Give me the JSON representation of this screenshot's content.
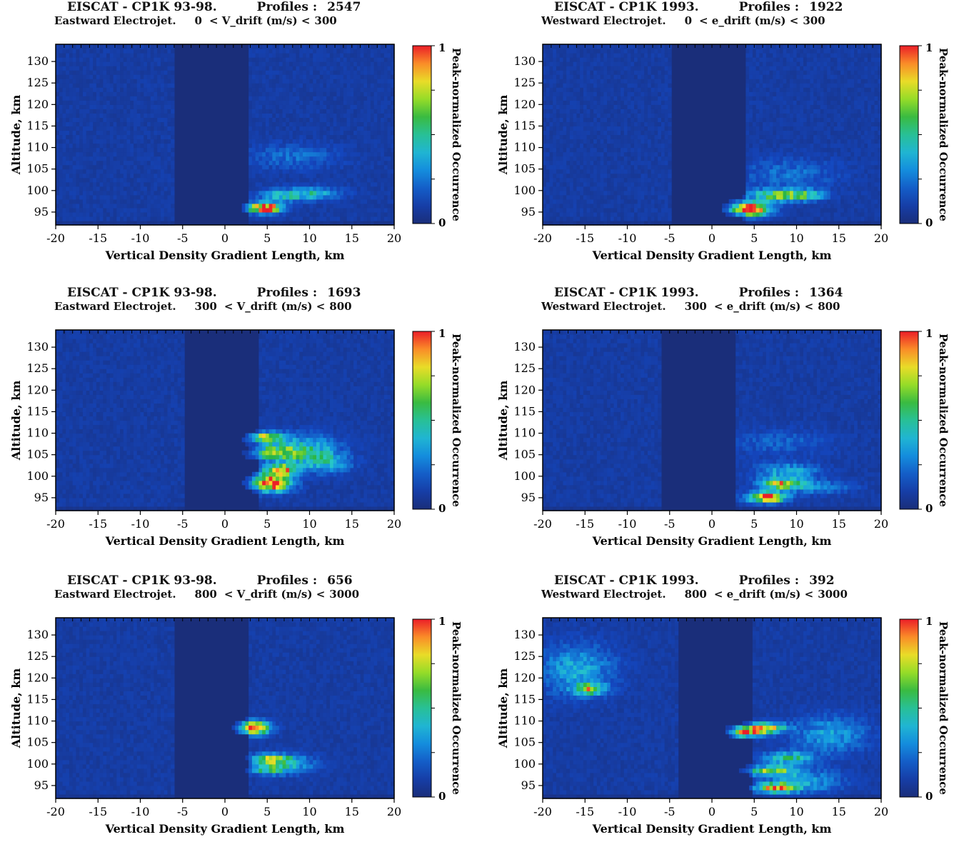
{
  "colors": {
    "background": "#1a2e7a",
    "axis": "#000000"
  },
  "colorbar": {
    "label": "Peak-normalized Occurrence",
    "max_label": "1",
    "min_label": "0"
  },
  "chart_data": [
    {
      "type": "heatmap",
      "header_left": "EISCAT - CP1K 93-98.",
      "header_right_label": "Profiles :",
      "profiles": "2547",
      "subtitle_left": "Eastward Electrojet.",
      "drift_low": "0",
      "drift_label": "< V_drift (m/s) <",
      "drift_high": "300",
      "xlabel": "Vertical Density Gradient Length, km",
      "ylabel": "Altitude, km",
      "xlim": [
        -20,
        20
      ],
      "ylim": [
        92,
        134
      ],
      "xticks": [
        -20,
        -15,
        -10,
        -5,
        0,
        5,
        10,
        15,
        20
      ],
      "yticks": [
        95,
        100,
        105,
        110,
        115,
        120,
        125,
        130
      ],
      "empty_band_x": [
        -6,
        3
      ],
      "hotspots": [
        {
          "x": 4.8,
          "y": 96,
          "sx": 1.4,
          "sy": 0.8,
          "v": 1.0
        },
        {
          "x": 7,
          "y": 99,
          "sx": 2.0,
          "sy": 1.0,
          "v": 0.35
        },
        {
          "x": 11,
          "y": 99.5,
          "sx": 2.0,
          "sy": 1.0,
          "v": 0.28
        },
        {
          "x": 8,
          "y": 108,
          "sx": 4.0,
          "sy": 2.0,
          "v": 0.14
        }
      ]
    },
    {
      "type": "heatmap",
      "header_left": "EISCAT - CP1K 1993.",
      "header_right_label": "Profiles :",
      "profiles": "1922",
      "subtitle_left": "Westward Electrojet.",
      "drift_low": "0",
      "drift_label": "< e_drift (m/s) <",
      "drift_high": "300",
      "xlabel": "Vertical Density Gradient Length, km",
      "ylabel": "Altitude, km",
      "xlim": [
        -20,
        20
      ],
      "ylim": [
        92,
        134
      ],
      "xticks": [
        -20,
        -15,
        -10,
        -5,
        0,
        5,
        10,
        15,
        20
      ],
      "yticks": [
        95,
        100,
        105,
        110,
        115,
        120,
        125,
        130
      ],
      "empty_band_x": [
        -5,
        4
      ],
      "hotspots": [
        {
          "x": 4.5,
          "y": 95.8,
          "sx": 1.6,
          "sy": 1.1,
          "v": 1.0
        },
        {
          "x": 7.5,
          "y": 99,
          "sx": 2.0,
          "sy": 1.0,
          "v": 0.5
        },
        {
          "x": 11,
          "y": 99,
          "sx": 1.6,
          "sy": 0.9,
          "v": 0.4
        },
        {
          "x": 9,
          "y": 104,
          "sx": 4.0,
          "sy": 2.5,
          "v": 0.15
        }
      ]
    },
    {
      "type": "heatmap",
      "header_left": "EISCAT - CP1K 93-98.",
      "header_right_label": "Profiles :",
      "profiles": "1693",
      "subtitle_left": "Eastward Electrojet.",
      "drift_low": "300",
      "drift_label": "< V_drift (m/s) <",
      "drift_high": "800",
      "xlabel": "Vertical Density Gradient Length, km",
      "ylabel": "Altitude, km",
      "xlim": [
        -20,
        20
      ],
      "ylim": [
        92,
        134
      ],
      "xticks": [
        -20,
        -15,
        -10,
        -5,
        0,
        5,
        10,
        15,
        20
      ],
      "yticks": [
        95,
        100,
        105,
        110,
        115,
        120,
        125,
        130
      ],
      "empty_band_x": [
        -5,
        4
      ],
      "hotspots": [
        {
          "x": 5.5,
          "y": 98.5,
          "sx": 1.6,
          "sy": 1.3,
          "v": 1.0
        },
        {
          "x": 6.5,
          "y": 101.5,
          "sx": 1.2,
          "sy": 0.9,
          "v": 0.85
        },
        {
          "x": 5,
          "y": 109,
          "sx": 1.5,
          "sy": 0.9,
          "v": 0.7
        },
        {
          "x": 6,
          "y": 105.5,
          "sx": 2.0,
          "sy": 1.2,
          "v": 0.55
        },
        {
          "x": 10,
          "y": 106,
          "sx": 2.5,
          "sy": 2.5,
          "v": 0.35
        },
        {
          "x": 12,
          "y": 103,
          "sx": 2.0,
          "sy": 1.5,
          "v": 0.25
        }
      ]
    },
    {
      "type": "heatmap",
      "header_left": "EISCAT - CP1K 1993.",
      "header_right_label": "Profiles :",
      "profiles": "1364",
      "subtitle_left": "Westward Electrojet.",
      "drift_low": "300",
      "drift_label": "< e_drift (m/s) <",
      "drift_high": "800",
      "xlabel": "Vertical Density Gradient Length, km",
      "ylabel": "Altitude, km",
      "xlim": [
        -20,
        20
      ],
      "ylim": [
        92,
        134
      ],
      "xticks": [
        -20,
        -15,
        -10,
        -5,
        0,
        5,
        10,
        15,
        20
      ],
      "yticks": [
        95,
        100,
        105,
        110,
        115,
        120,
        125,
        130
      ],
      "empty_band_x": [
        -6,
        3
      ],
      "hotspots": [
        {
          "x": 6.5,
          "y": 95.2,
          "sx": 1.5,
          "sy": 0.8,
          "v": 1.0
        },
        {
          "x": 8,
          "y": 98.3,
          "sx": 1.6,
          "sy": 0.8,
          "v": 0.6
        },
        {
          "x": 9,
          "y": 101,
          "sx": 2.5,
          "sy": 1.5,
          "v": 0.3
        },
        {
          "x": 12,
          "y": 97.5,
          "sx": 3.0,
          "sy": 1.0,
          "v": 0.22
        },
        {
          "x": 8,
          "y": 108,
          "sx": 4.0,
          "sy": 2.0,
          "v": 0.12
        }
      ]
    },
    {
      "type": "heatmap",
      "header_left": "EISCAT - CP1K 93-98.",
      "header_right_label": "Profiles :",
      "profiles": "656",
      "subtitle_left": "Eastward Electrojet.",
      "drift_low": "800",
      "drift_label": "< V_drift (m/s) <",
      "drift_high": "3000",
      "xlabel": "Vertical Density Gradient Length, km",
      "ylabel": "Altitude, km",
      "xlim": [
        -20,
        20
      ],
      "ylim": [
        92,
        134
      ],
      "xticks": [
        -20,
        -15,
        -10,
        -5,
        0,
        5,
        10,
        15,
        20
      ],
      "yticks": [
        95,
        100,
        105,
        110,
        115,
        120,
        125,
        130
      ],
      "empty_band_x": [
        -6,
        3
      ],
      "hotspots": [
        {
          "x": 3.5,
          "y": 108.5,
          "sx": 1.2,
          "sy": 1.0,
          "v": 1.0
        },
        {
          "x": 5.5,
          "y": 101.2,
          "sx": 1.6,
          "sy": 0.8,
          "v": 0.6
        },
        {
          "x": 5,
          "y": 98.8,
          "sx": 1.5,
          "sy": 0.8,
          "v": 0.45
        },
        {
          "x": 8,
          "y": 100,
          "sx": 2.0,
          "sy": 1.5,
          "v": 0.25
        }
      ]
    },
    {
      "type": "heatmap",
      "header_left": "EISCAT - CP1K 1993.",
      "header_right_label": "Profiles :",
      "profiles": "392",
      "subtitle_left": "Westward Electrojet.",
      "drift_low": "800",
      "drift_label": "< e_drift (m/s) <",
      "drift_high": "3000",
      "xlabel": "Vertical Density Gradient Length, km",
      "ylabel": "Altitude, km",
      "xlim": [
        -20,
        20
      ],
      "ylim": [
        92,
        134
      ],
      "xticks": [
        -20,
        -15,
        -10,
        -5,
        0,
        5,
        10,
        15,
        20
      ],
      "yticks": [
        95,
        100,
        105,
        110,
        115,
        120,
        125,
        130
      ],
      "empty_band_x": [
        -4,
        5
      ],
      "hotspots": [
        {
          "x": 4,
          "y": 107.5,
          "sx": 1.3,
          "sy": 0.8,
          "v": 0.85
        },
        {
          "x": 6.5,
          "y": 108.5,
          "sx": 1.5,
          "sy": 0.8,
          "v": 0.7
        },
        {
          "x": 7.5,
          "y": 94.5,
          "sx": 1.5,
          "sy": 0.8,
          "v": 0.75
        },
        {
          "x": 7,
          "y": 98.5,
          "sx": 2.0,
          "sy": 0.8,
          "v": 0.55
        },
        {
          "x": 9,
          "y": 101.5,
          "sx": 2.0,
          "sy": 1.0,
          "v": 0.4
        },
        {
          "x": -14.5,
          "y": 117.5,
          "sx": 1.2,
          "sy": 1.0,
          "v": 0.55
        },
        {
          "x": -16,
          "y": 122,
          "sx": 3.0,
          "sy": 4.0,
          "v": 0.28
        },
        {
          "x": 14,
          "y": 107,
          "sx": 3.0,
          "sy": 3.0,
          "v": 0.25
        },
        {
          "x": 11,
          "y": 96,
          "sx": 3.0,
          "sy": 2.0,
          "v": 0.25
        }
      ]
    }
  ]
}
